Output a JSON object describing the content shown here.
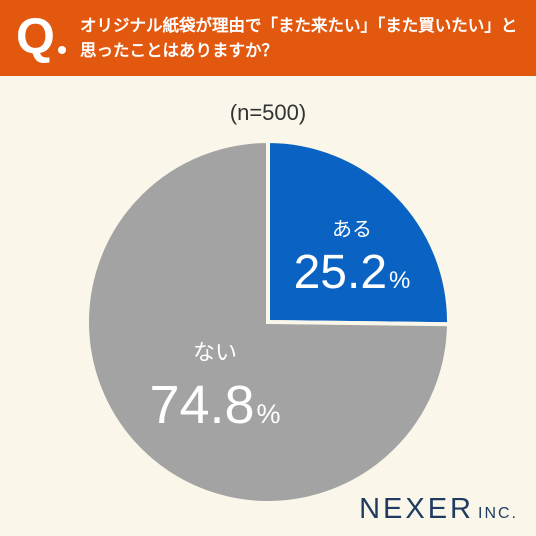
{
  "header": {
    "q_mark": "Q",
    "question_lines": [
      "オリジナル紙袋が理由で「また来たい」「また買いたい」と",
      "思ったことはありますか？"
    ]
  },
  "sample_label": "(n=500)",
  "chart_data": {
    "type": "pie",
    "start": "12 o'clock",
    "direction": "clockwise",
    "slices": [
      {
        "label": "ある",
        "value": 25.2,
        "display": "25.2",
        "unit": "%",
        "color": "#0a63c2"
      },
      {
        "label": "ない",
        "value": 74.8,
        "display": "74.8",
        "unit": "%",
        "color": "#a3a3a3"
      }
    ],
    "separator_color": "#faf6e9"
  },
  "brand": {
    "name": "NEXER",
    "suffix": "INC."
  }
}
